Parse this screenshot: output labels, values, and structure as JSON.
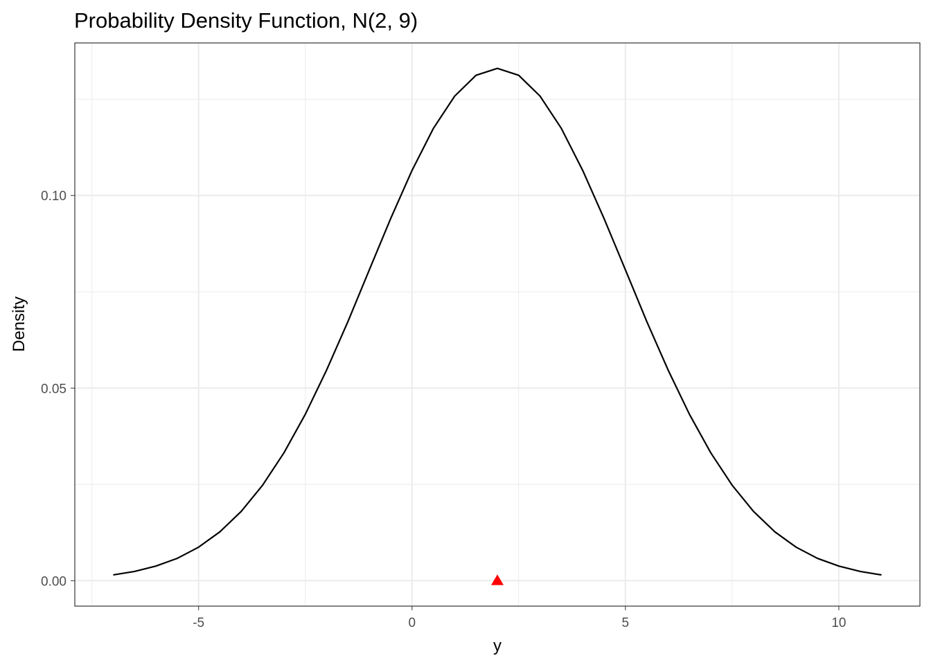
{
  "chart_data": {
    "type": "line",
    "title": "Probability Density Function, N(2, 9)",
    "x_label": "y",
    "y_label": "Density",
    "xlim": [
      -7.9,
      11.9
    ],
    "ylim": [
      -0.0066,
      0.1396
    ],
    "xticks": [
      -5,
      0,
      5,
      10
    ],
    "yticks": [
      {
        "value": 0,
        "label": "0.00"
      },
      {
        "value": 0.05,
        "label": "0.05"
      },
      {
        "value": 0.1,
        "label": "0.10"
      }
    ],
    "x_minor_grid": [
      -7.5,
      -2.5,
      2.5,
      7.5
    ],
    "y_minor_grid": [
      0.025,
      0.075,
      0.125
    ],
    "grid": true,
    "series": [
      {
        "color": "#000000",
        "x": [
          -7,
          -6.5,
          -6,
          -5.5,
          -5,
          -4.5,
          -4,
          -3.5,
          -3,
          -2.5,
          -2,
          -1.5,
          -1,
          -0.5,
          0,
          0.5,
          1,
          1.5,
          2,
          2.5,
          3,
          3.5,
          4,
          4.5,
          5,
          5.5,
          6,
          6.5,
          7,
          7.5,
          8,
          8.5,
          9,
          9.5,
          10,
          10.5,
          11
        ],
        "values": [
          0.0015,
          0.0024,
          0.0038,
          0.0058,
          0.0087,
          0.0127,
          0.018,
          0.0248,
          0.0332,
          0.0432,
          0.0547,
          0.0673,
          0.0807,
          0.094,
          0.1065,
          0.1174,
          0.1258,
          0.1312,
          0.133,
          0.1312,
          0.1258,
          0.1174,
          0.1065,
          0.094,
          0.0807,
          0.0673,
          0.0547,
          0.0432,
          0.0332,
          0.0248,
          0.018,
          0.0127,
          0.0087,
          0.0058,
          0.0038,
          0.0024,
          0.0015
        ]
      },
      {
        "color": "#ff0000",
        "marker": "triangle",
        "x": [
          2
        ],
        "values": [
          0
        ]
      }
    ]
  }
}
